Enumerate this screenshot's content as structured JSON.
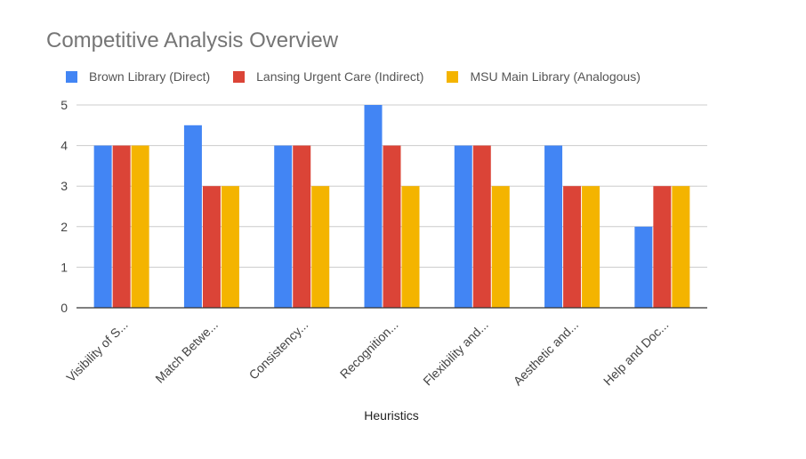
{
  "chart_data": {
    "type": "bar",
    "title": "Competitive Analysis Overview",
    "xlabel": "Heuristics",
    "ylabel": "",
    "ylim": [
      0,
      5
    ],
    "yticks": [
      0,
      1,
      2,
      3,
      4,
      5
    ],
    "grid": true,
    "legend_position": "top",
    "categories": [
      "Visibility of S...",
      "Match Betwe...",
      "Consistency...",
      "Recognition...",
      "Flexibility and...",
      "Aesthetic and...",
      "Help and Doc..."
    ],
    "series": [
      {
        "name": "Brown Library (Direct)",
        "color": "#4285F4",
        "values": [
          4,
          4.5,
          4,
          5,
          4,
          4,
          2
        ]
      },
      {
        "name": "Lansing Urgent Care (Indirect)",
        "color": "#DB4437",
        "values": [
          4,
          3,
          4,
          4,
          4,
          3,
          3
        ]
      },
      {
        "name": "MSU Main Library (Analogous)",
        "color": "#F4B400",
        "values": [
          4,
          3,
          3,
          3,
          3,
          3,
          3
        ]
      }
    ]
  }
}
